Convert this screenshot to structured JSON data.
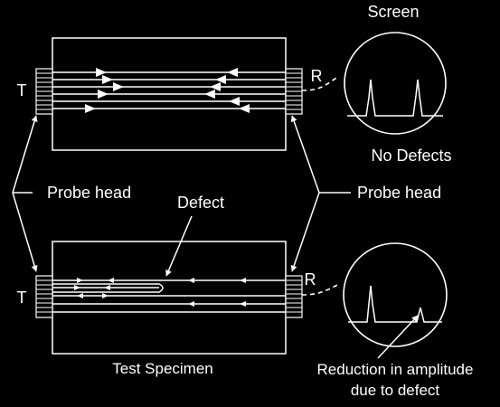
{
  "labels": {
    "screen": "Screen",
    "transmitter_top": "T",
    "receiver_top": "R",
    "no_defects": "No Defects",
    "probe_head_left": "Probe head",
    "probe_head_right": "Probe head",
    "defect": "Defect",
    "transmitter_bottom": "T",
    "receiver_bottom": "R",
    "test_specimen": "Test Specimen",
    "reduction_line1": "Reduction in amplitude",
    "reduction_line2": "due to defect"
  },
  "colors": {
    "background": "#000000",
    "foreground": "#ffffff"
  },
  "icons": {
    "probe": "hatched-rectangle",
    "screen": "circle-oscilloscope"
  }
}
